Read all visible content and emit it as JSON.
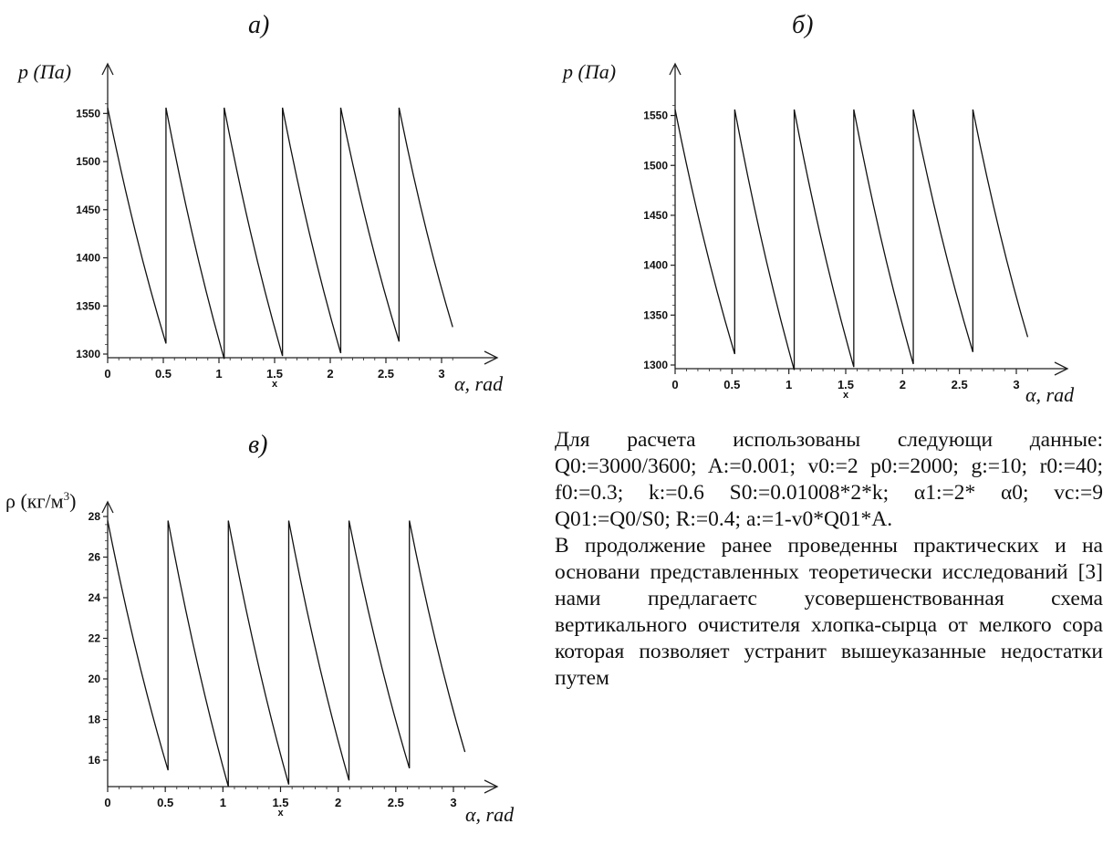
{
  "charts": {
    "a": {
      "panel_label": "а)",
      "y_label": "p (Па)",
      "x_label": "α, rad",
      "x_tick_caption": "x"
    },
    "b": {
      "panel_label": "б)",
      "y_label": "p (Па)",
      "x_label": "α, rad",
      "x_tick_caption": "x"
    },
    "c": {
      "panel_label": "в)",
      "y_label": "ρ (кг/м",
      "y_label_sup": "3",
      "y_label_end": ")",
      "x_label": "α, rad",
      "x_tick_caption": "x"
    }
  },
  "text": {
    "paragraph1": "Для расчета использованы следующи данные: Q0:=3000/3600; A:=0.001; v0:=2 p0:=2000; g:=10; r0:=40; f0:=0.3; k:=0.6 S0:=0.01008*2*k; α1:=2* α0; vc:=9 Q01:=Q0/S0; R:=0.4; a:=1-v0*Q01*A.",
    "paragraph2": "В продолжение ранее проведенны практических и на основани представленных теоретически исследований [3] нами предлагаетс усовершенствованная схема вертикального очистителя хлопка-сырца от мелкого сора которая позволяет устранит вышеуказанные недостатки путем"
  },
  "chart_data": [
    {
      "type": "line",
      "title": "а)",
      "xlabel": "α, rad",
      "ylabel": "p (Па)",
      "xlim": [
        0,
        3.14
      ],
      "ylim": [
        1300,
        1560
      ],
      "x_ticks": [
        0,
        0.5,
        1,
        1.5,
        2,
        2.5,
        3
      ],
      "x_tick_labels": [
        "0",
        "0.5",
        "1",
        "1.5",
        "2",
        "2.5",
        "3"
      ],
      "y_ticks": [
        1300,
        1350,
        1400,
        1450,
        1500,
        1550
      ],
      "y_tick_labels": [
        "1300",
        "1350",
        "1400",
        "1450",
        "1500",
        "1550"
      ],
      "series": [
        {
          "segments": [
            {
              "x": [
                0,
                0.524
              ],
              "y": [
                1556,
                1311
              ]
            },
            {
              "x": [
                0.524,
                1.047
              ],
              "y": [
                1556,
                1295
              ]
            },
            {
              "x": [
                1.047,
                1.571
              ],
              "y": [
                1556,
                1298
              ]
            },
            {
              "x": [
                1.571,
                2.094
              ],
              "y": [
                1556,
                1301
              ]
            },
            {
              "x": [
                2.094,
                2.618
              ],
              "y": [
                1556,
                1313
              ]
            },
            {
              "x": [
                2.618,
                3.1
              ],
              "y": [
                1556,
                1328
              ]
            }
          ]
        }
      ]
    },
    {
      "type": "line",
      "title": "б)",
      "xlabel": "α, rad",
      "ylabel": "p (Па)",
      "xlim": [
        0,
        3.14
      ],
      "ylim": [
        1300,
        1560
      ],
      "x_ticks": [
        0,
        0.5,
        1,
        1.5,
        2,
        2.5,
        3
      ],
      "x_tick_labels": [
        "0",
        "0.5",
        "1",
        "1.5",
        "2",
        "2.5",
        "3"
      ],
      "y_ticks": [
        1300,
        1350,
        1400,
        1450,
        1500,
        1550
      ],
      "y_tick_labels": [
        "1300",
        "1350",
        "1400",
        "1450",
        "1500",
        "1550"
      ],
      "series": [
        {
          "segments": [
            {
              "x": [
                0,
                0.524
              ],
              "y": [
                1556,
                1311
              ]
            },
            {
              "x": [
                0.524,
                1.047
              ],
              "y": [
                1556,
                1295
              ]
            },
            {
              "x": [
                1.047,
                1.571
              ],
              "y": [
                1556,
                1298
              ]
            },
            {
              "x": [
                1.571,
                2.094
              ],
              "y": [
                1556,
                1301
              ]
            },
            {
              "x": [
                2.094,
                2.618
              ],
              "y": [
                1556,
                1313
              ]
            },
            {
              "x": [
                2.618,
                3.1
              ],
              "y": [
                1556,
                1328
              ]
            }
          ]
        }
      ]
    },
    {
      "type": "line",
      "title": "в)",
      "xlabel": "α, rad",
      "ylabel": "ρ (кг/м3)",
      "xlim": [
        0,
        3.14
      ],
      "ylim": [
        14.5,
        28.3
      ],
      "x_ticks": [
        0,
        0.5,
        1,
        1.5,
        2,
        2.5,
        3
      ],
      "x_tick_labels": [
        "0",
        "0.5",
        "1",
        "1.5",
        "2",
        "2.5",
        "3"
      ],
      "y_ticks": [
        16,
        18,
        20,
        22,
        24,
        26,
        28
      ],
      "y_tick_labels": [
        "16",
        "18",
        "20",
        "22",
        "24",
        "26",
        "28"
      ],
      "series": [
        {
          "segments": [
            {
              "x": [
                0,
                0.524
              ],
              "y": [
                27.8,
                15.5
              ]
            },
            {
              "x": [
                0.524,
                1.047
              ],
              "y": [
                27.8,
                14.7
              ]
            },
            {
              "x": [
                1.047,
                1.571
              ],
              "y": [
                27.8,
                14.8
              ]
            },
            {
              "x": [
                1.571,
                2.094
              ],
              "y": [
                27.8,
                15.0
              ]
            },
            {
              "x": [
                2.094,
                2.618
              ],
              "y": [
                27.8,
                15.6
              ]
            },
            {
              "x": [
                2.618,
                3.1
              ],
              "y": [
                27.8,
                16.4
              ]
            }
          ]
        }
      ]
    }
  ]
}
